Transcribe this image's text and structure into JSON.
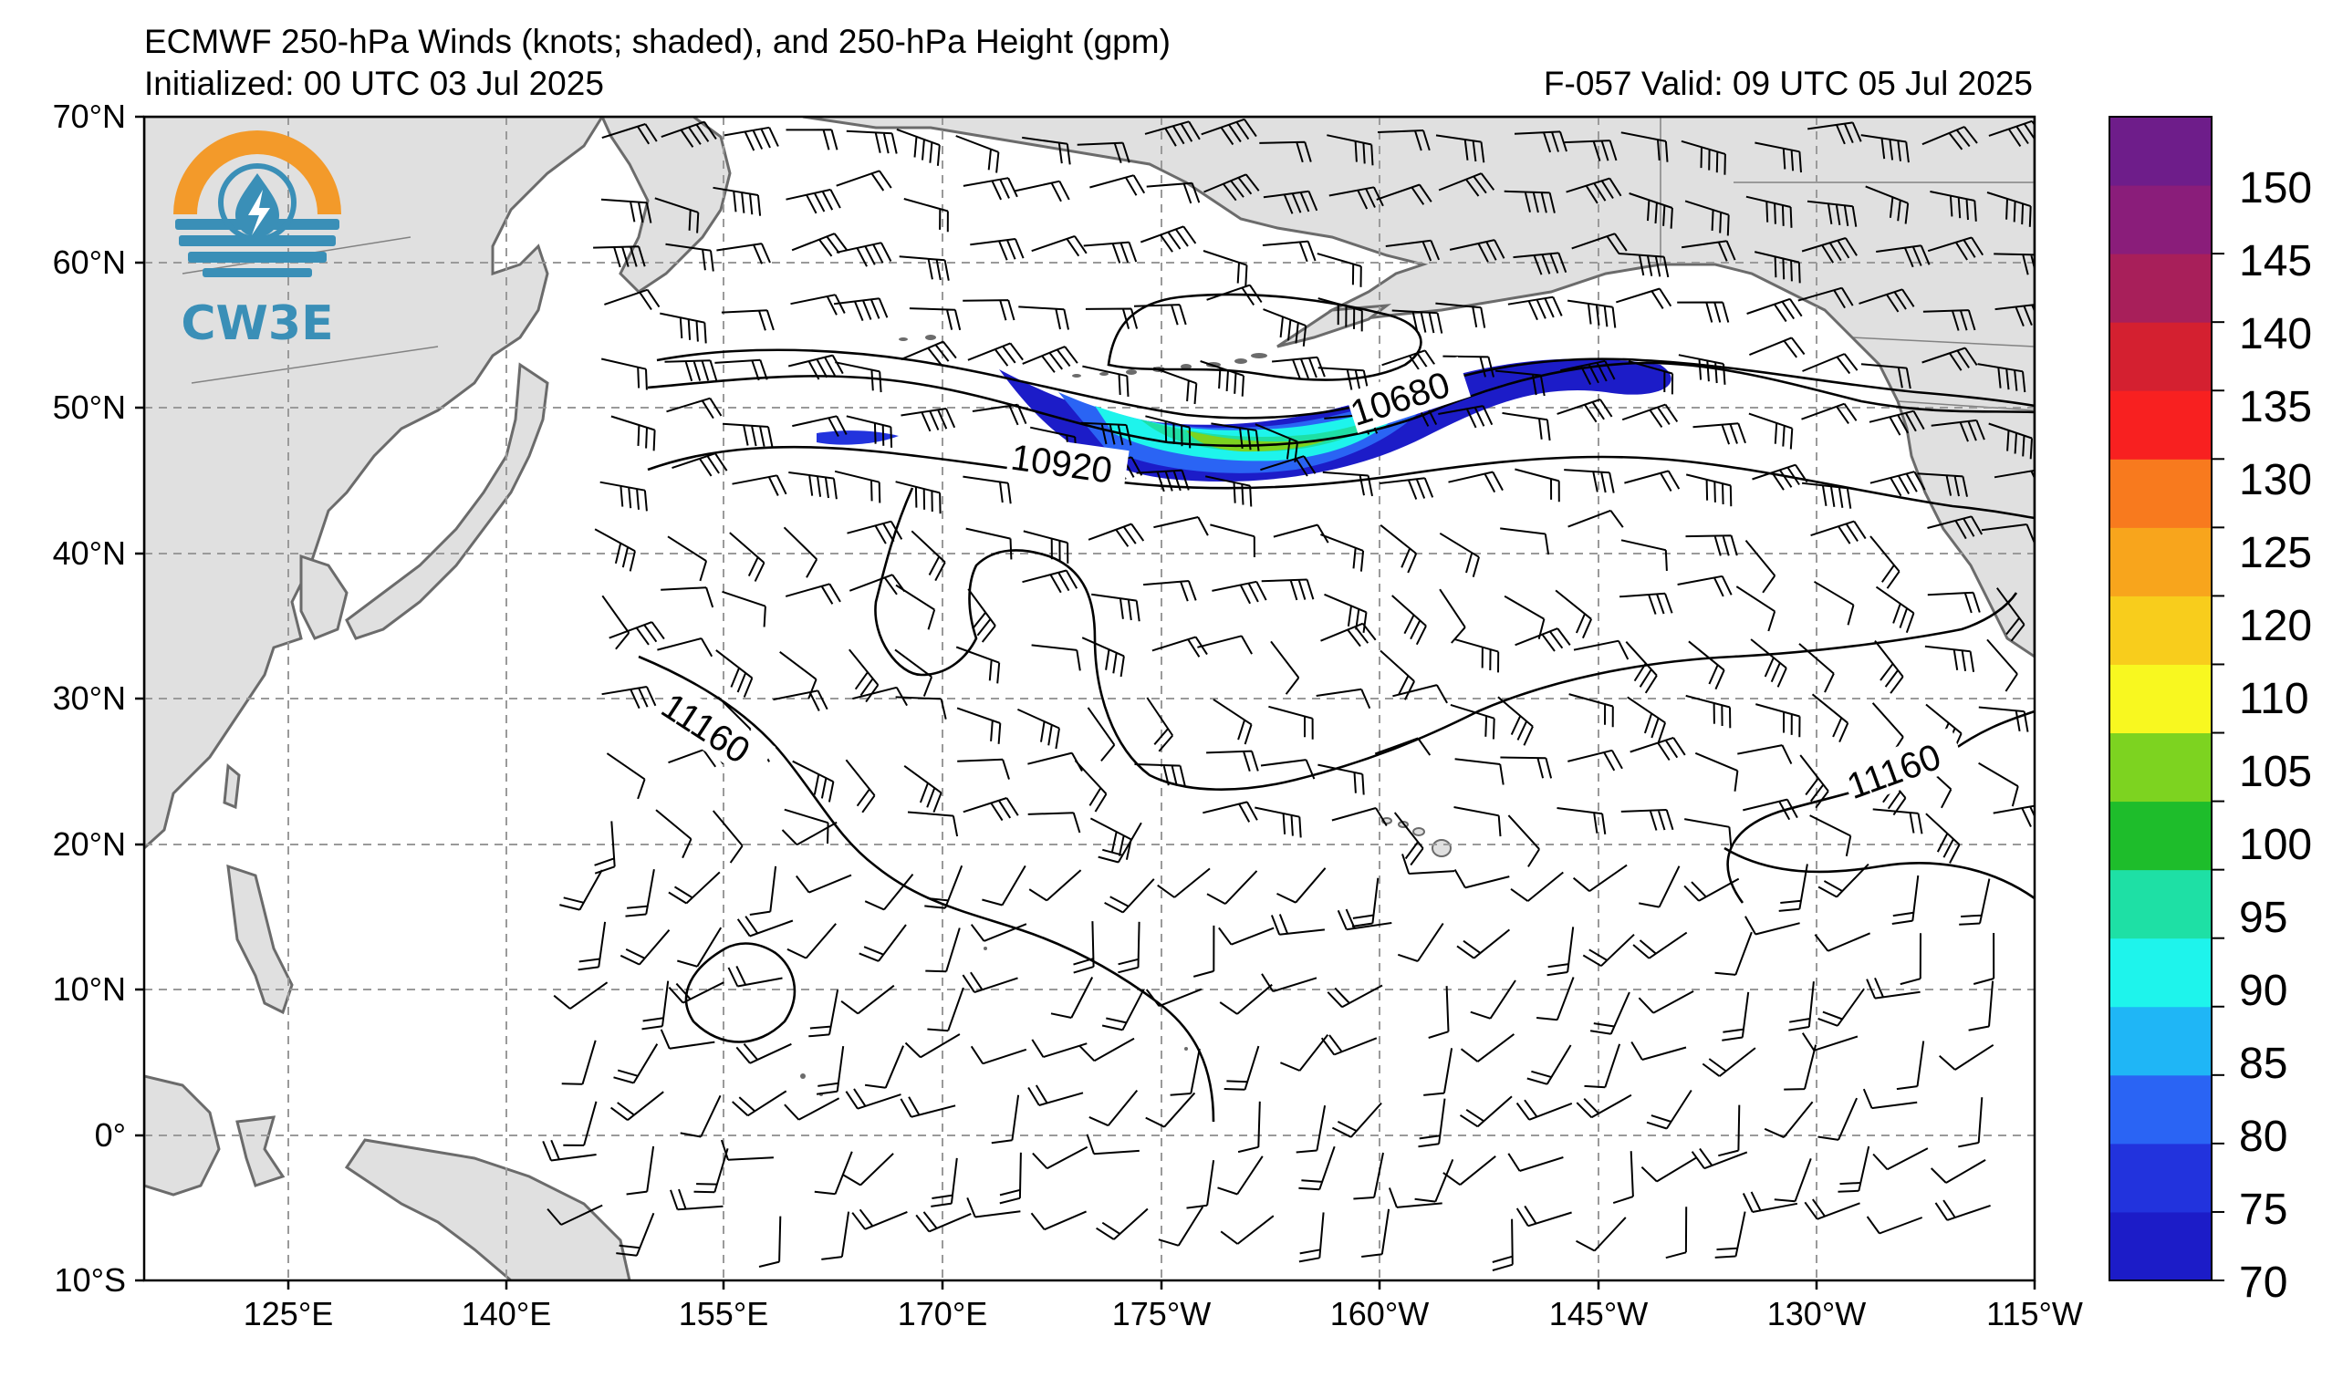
{
  "header": {
    "title_line1": "ECMWF 250-hPa Winds (knots; shaded), and 250-hPa Height (gpm)",
    "init": "Initialized: 00 UTC 03 Jul 2025",
    "valid": "F-057  Valid: 09 UTC 05 Jul 2025"
  },
  "logo": {
    "text": "CW3E",
    "colors": {
      "sun": "#f39a2a",
      "blue": "#3a8fb7",
      "drop": "#3a8fb7"
    }
  },
  "axes": {
    "lat_labels": [
      "70°N",
      "60°N",
      "50°N",
      "40°N",
      "30°N",
      "20°N",
      "10°N",
      "0°",
      "10°S"
    ],
    "lon_labels": [
      "125°E",
      "140°E",
      "155°E",
      "170°E",
      "175°W",
      "160°W",
      "145°W",
      "130°W",
      "115°W"
    ]
  },
  "contours": {
    "labels": [
      "10680",
      "10920",
      "11160",
      "11160"
    ]
  },
  "colorbar": {
    "labels": [
      "70",
      "75",
      "80",
      "85",
      "90",
      "95",
      "100",
      "105",
      "110",
      "120",
      "125",
      "130",
      "135",
      "140",
      "145",
      "150"
    ],
    "colors": [
      "#1c1cc8",
      "#2233dd",
      "#2a64f4",
      "#1fb6f6",
      "#1ef4ec",
      "#1ee0a5",
      "#1ebd2b",
      "#7dd320",
      "#f8f820",
      "#f8cd1c",
      "#f8a51c",
      "#f87a1e",
      "#f82020",
      "#d42030",
      "#a81f5a",
      "#8a1d7a",
      "#6e1d8a"
    ]
  },
  "colors": {
    "land": "#e0e0e0",
    "coast": "#6b6b6b",
    "grid": "#9a9a9a",
    "contour": "#000000"
  }
}
